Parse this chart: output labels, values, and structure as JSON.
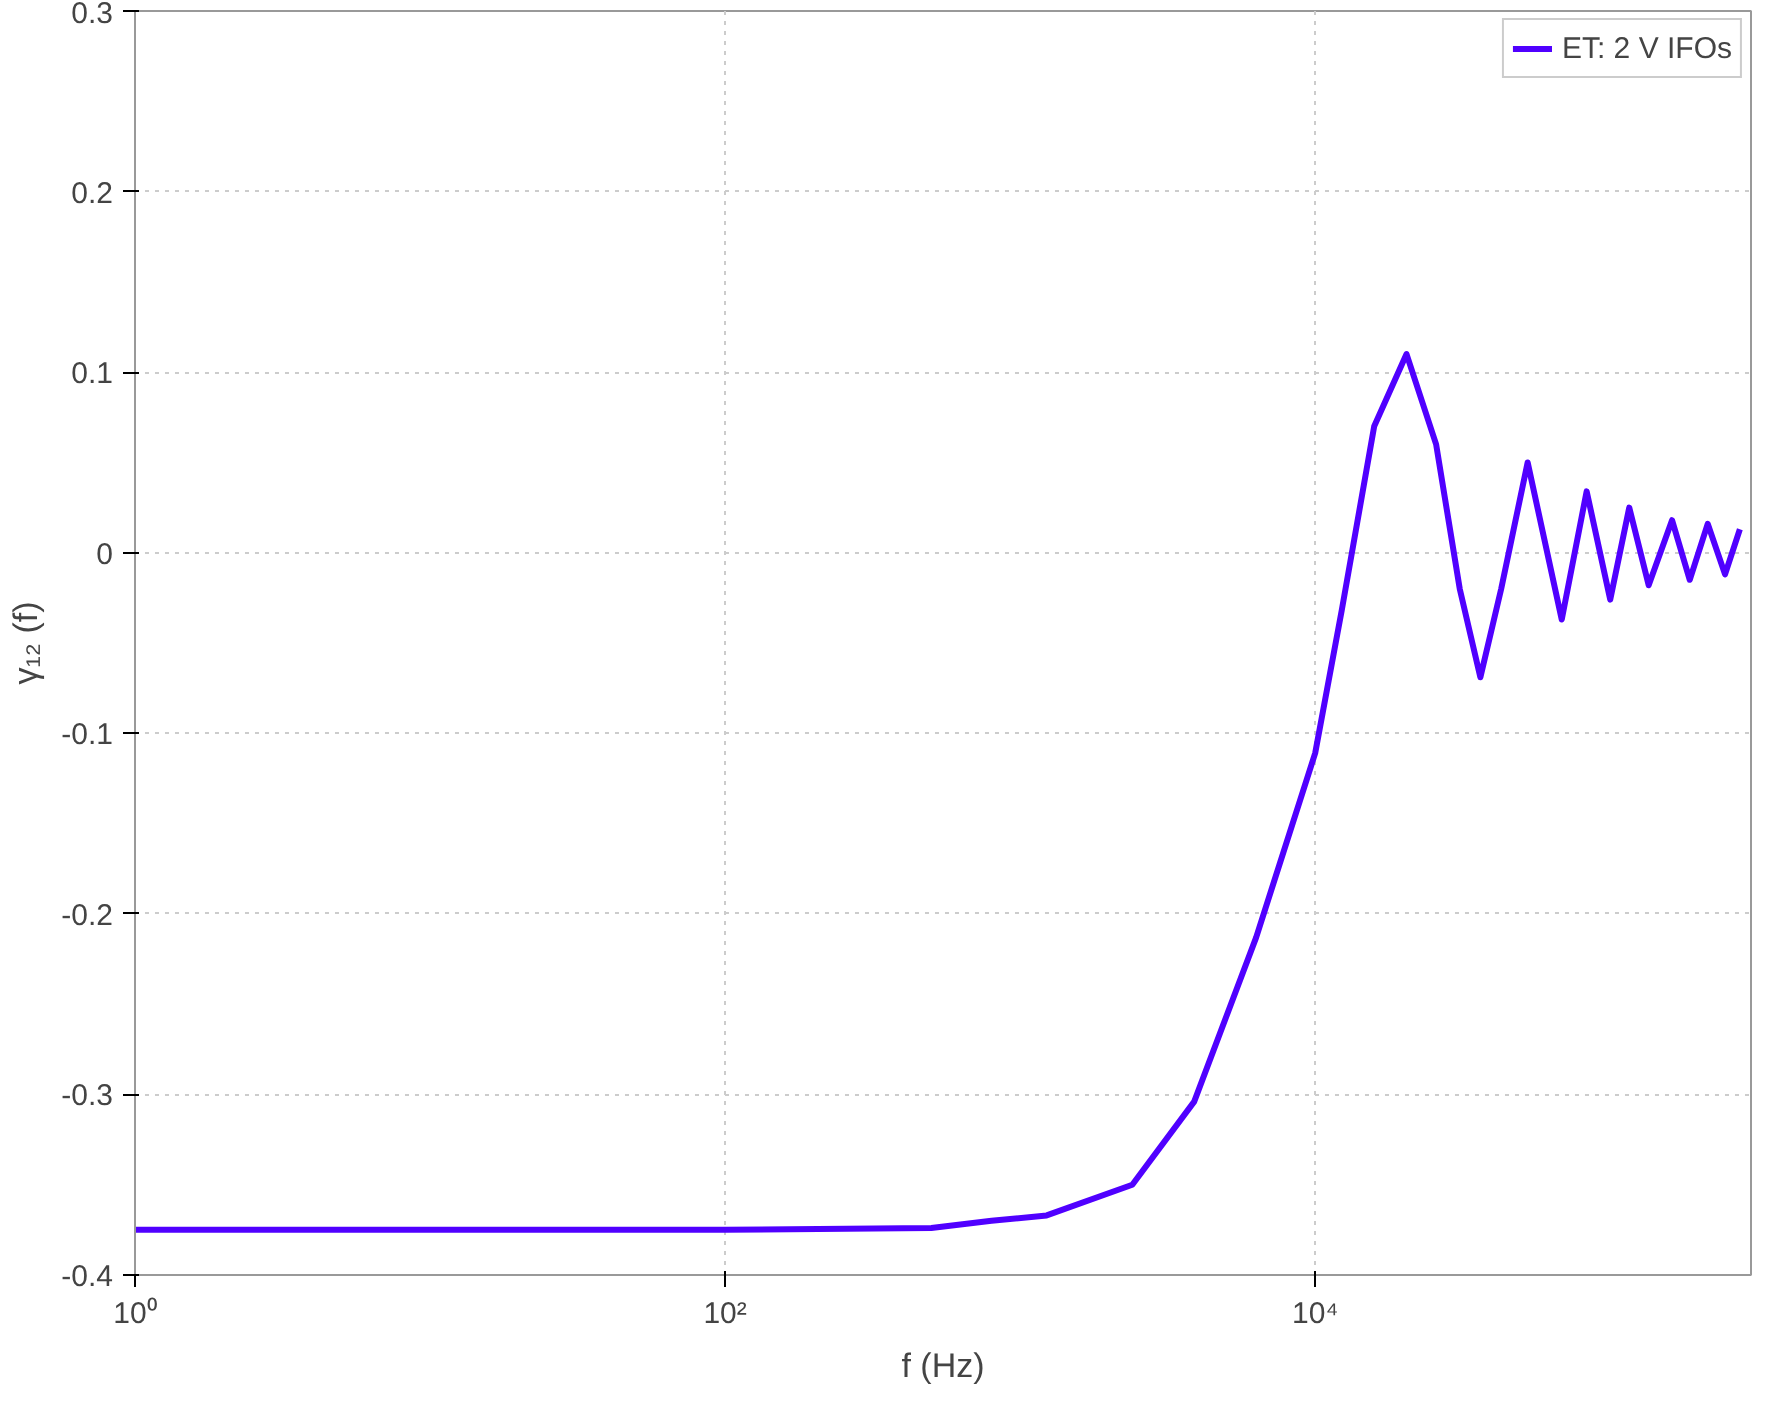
{
  "chart_data": {
    "type": "line",
    "xlabel": "f (Hz)",
    "ylabel": "γ₁₂ (f)",
    "series": [
      {
        "name": "ET: 2 V IFOs",
        "color": "#5000ff",
        "x": [
          1,
          10,
          100,
          500,
          800,
          1230,
          2400,
          3890,
          6310,
          10000,
          12300,
          15850,
          20400,
          25700,
          30900,
          36300,
          42700,
          52500,
          68500,
          83200,
          100000,
          116000,
          135000,
          162000,
          186000,
          214000,
          245000,
          275000
        ],
        "values": [
          -0.375,
          -0.375,
          -0.375,
          -0.374,
          -0.37,
          -0.367,
          -0.35,
          -0.304,
          -0.213,
          -0.111,
          -0.032,
          0.07,
          0.11,
          0.06,
          -0.02,
          -0.069,
          -0.02,
          0.05,
          -0.037,
          0.034,
          -0.026,
          0.025,
          -0.018,
          0.018,
          -0.015,
          0.016,
          -0.012,
          0.013
        ]
      }
    ],
    "log": "x",
    "xlim": [
      1,
      300000
    ],
    "xticks": [
      {
        "value": 1,
        "label": "10⁰"
      },
      {
        "value": 100,
        "label": "10²"
      },
      {
        "value": 10000,
        "label": "10⁴"
      }
    ],
    "ylim": [
      -0.4,
      0.3
    ],
    "yticks": [
      -0.4,
      -0.3,
      -0.2,
      -0.1,
      0,
      0.1,
      0.2,
      0.3
    ],
    "grid": true,
    "legend": "top right",
    "line_style": "solid",
    "marker": "none"
  }
}
